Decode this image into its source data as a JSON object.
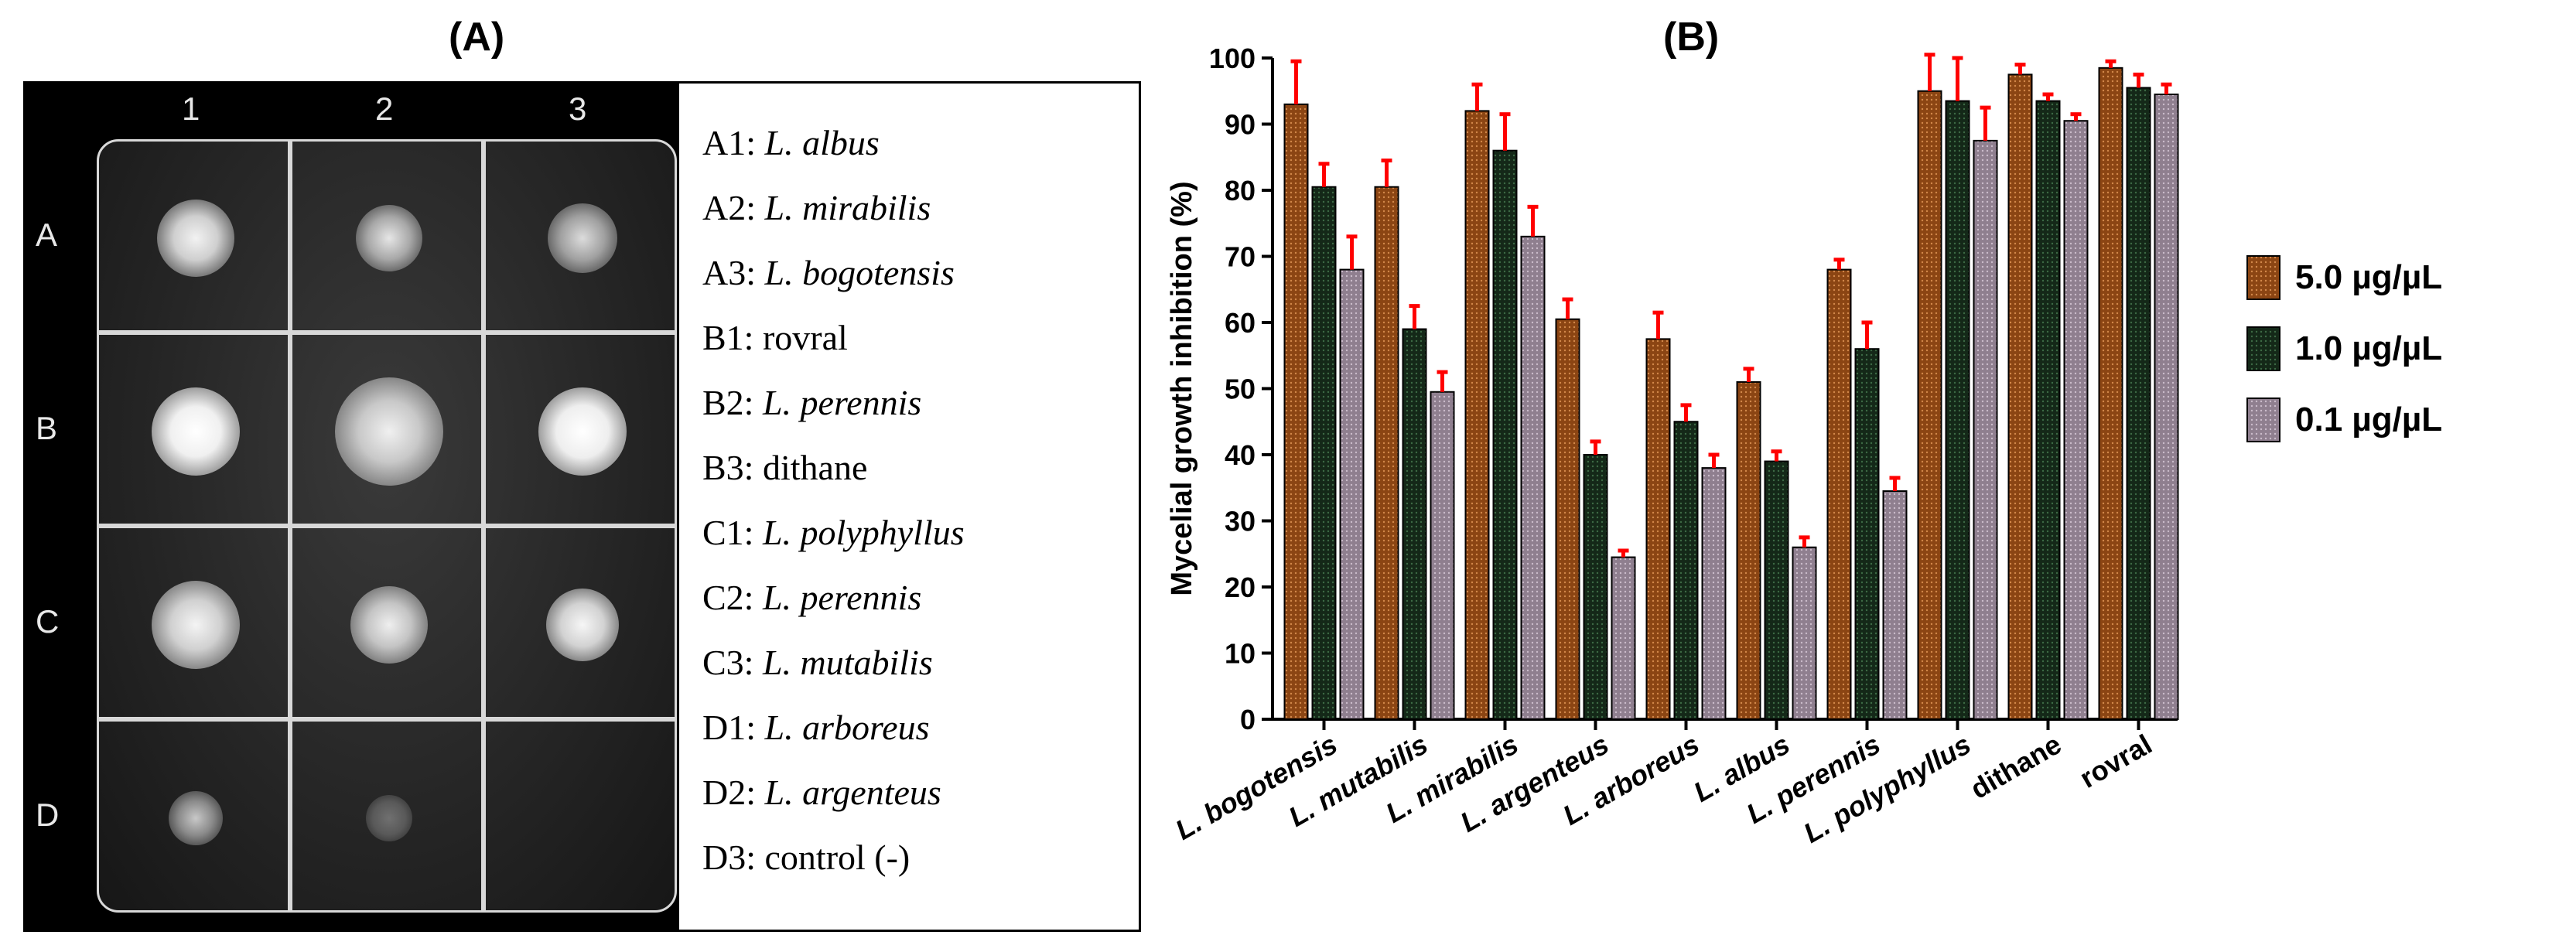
{
  "panel_a": {
    "label": "(A)",
    "col_labels": [
      "1",
      "2",
      "3"
    ],
    "row_labels": [
      "A",
      "B",
      "C",
      "D"
    ],
    "legend": [
      {
        "code": "A1:",
        "name": "L. albus",
        "italic": true
      },
      {
        "code": "A2:",
        "name": "L. mirabilis",
        "italic": true
      },
      {
        "code": "A3:",
        "name": "L. bogotensis",
        "italic": true
      },
      {
        "code": "B1:",
        "name": "rovral",
        "italic": false
      },
      {
        "code": "B2:",
        "name": "L. perennis",
        "italic": true
      },
      {
        "code": "B3:",
        "name": "dithane",
        "italic": false
      },
      {
        "code": "C1:",
        "name": "L. polyphyllus",
        "italic": true
      },
      {
        "code": "C2:",
        "name": "L. perennis",
        "italic": true
      },
      {
        "code": "C3:",
        "name": "L. mutabilis",
        "italic": true
      },
      {
        "code": "D1:",
        "name": "L. arboreus",
        "italic": true
      },
      {
        "code": "D2:",
        "name": "L. argenteus",
        "italic": true
      },
      {
        "code": "D3:",
        "name": "control (-)",
        "italic": false
      }
    ]
  },
  "chart_data": {
    "type": "bar",
    "title": "(B)",
    "xlabel": "",
    "ylabel": "Mycelial growth inhibition (%)",
    "ylim": [
      0,
      100
    ],
    "yticks": [
      0,
      10,
      20,
      30,
      40,
      50,
      60,
      70,
      80,
      90,
      100
    ],
    "legend_position": "right",
    "categories": [
      "L. bogotensis",
      "L. mutabilis",
      "L. mirabilis",
      "L. argenteus",
      "L. arboreus",
      "L. albus",
      "L. perennis",
      "L. polyphyllus",
      "dithane",
      "rovral"
    ],
    "categories_italic": [
      true,
      true,
      true,
      true,
      true,
      true,
      true,
      true,
      false,
      false
    ],
    "series": [
      {
        "name": "5.0 µg/µL",
        "color": "#8b4513",
        "values": [
          93,
          80.5,
          92,
          60.5,
          57.5,
          51,
          68,
          95,
          97.5,
          98.5
        ],
        "errors": [
          6.5,
          4,
          4,
          3,
          4,
          2,
          1.5,
          5.5,
          1.5,
          1
        ]
      },
      {
        "name": "1.0 µg/µL",
        "color": "#142818",
        "values": [
          80.5,
          59,
          86,
          40,
          45,
          39,
          56,
          93.5,
          93.5,
          95.5
        ],
        "errors": [
          3.5,
          3.5,
          5.5,
          2,
          2.5,
          1.5,
          4,
          6.5,
          1,
          2
        ]
      },
      {
        "name": "0.1 µg/µL",
        "color": "#8f7f8f",
        "values": [
          68,
          49.5,
          73,
          24.5,
          38,
          26,
          34.5,
          87.5,
          90.5,
          94.5
        ],
        "errors": [
          5,
          3,
          4.5,
          1,
          2,
          1.5,
          2,
          5,
          1,
          1.5
        ]
      }
    ],
    "error_color": "#ff0000"
  }
}
